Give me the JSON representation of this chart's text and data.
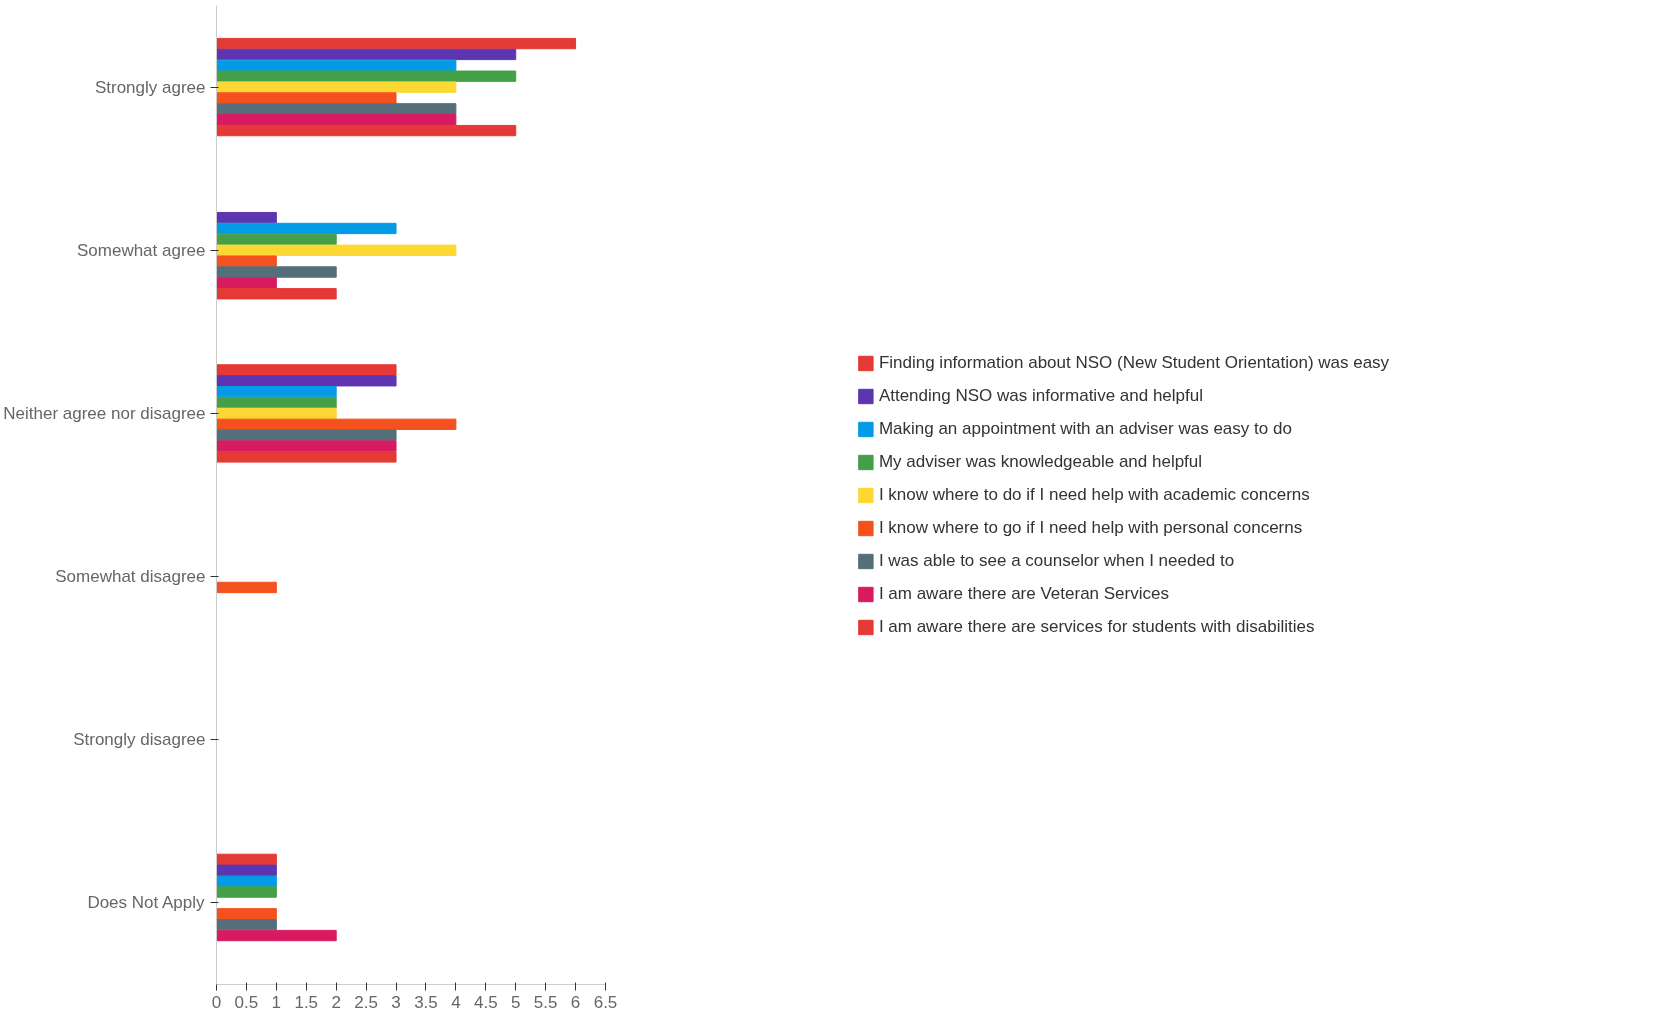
{
  "chart_data": {
    "type": "bar",
    "orientation": "horizontal",
    "categories": [
      "Strongly agree",
      "Somewhat agree",
      "Neither agree nor disagree",
      "Somewhat disagree",
      "Strongly disagree",
      "Does Not Apply"
    ],
    "series": [
      {
        "name": "Finding information about NSO (New Student Orientation) was easy",
        "color": "#e53935",
        "values": [
          6,
          0,
          3,
          0,
          0,
          1
        ]
      },
      {
        "name": "Attending NSO was informative and helpful",
        "color": "#5e35b1",
        "values": [
          5,
          1,
          3,
          0,
          0,
          1
        ]
      },
      {
        "name": "Making an appointment with an adviser was easy to do",
        "color": "#039be5",
        "values": [
          4,
          3,
          2,
          0,
          0,
          1
        ]
      },
      {
        "name": "My adviser was knowledgeable and helpful",
        "color": "#43a047",
        "values": [
          5,
          2,
          2,
          0,
          0,
          1
        ]
      },
      {
        "name": "I know where to do if I need help with academic concerns",
        "color": "#fdd835",
        "values": [
          4,
          4,
          2,
          0,
          0,
          0
        ]
      },
      {
        "name": "I know where to go if I need help with personal concerns",
        "color": "#f4511e",
        "values": [
          3,
          1,
          4,
          1,
          0,
          1
        ]
      },
      {
        "name": "I was able to see a counselor when I needed to",
        "color": "#546e7a",
        "values": [
          4,
          2,
          3,
          0,
          0,
          1
        ]
      },
      {
        "name": "I am aware there are Veteran Services",
        "color": "#d81b60",
        "values": [
          4,
          1,
          3,
          0,
          0,
          2
        ]
      },
      {
        "name": "I am aware there are services for students with disabilities",
        "color": "#e53935",
        "values": [
          5,
          2,
          3,
          0,
          0,
          0
        ]
      }
    ],
    "xlim": [
      0,
      6.5
    ],
    "xticks": [
      0,
      0.5,
      1,
      1.5,
      2,
      2.5,
      3,
      3.5,
      4,
      4.5,
      5,
      5.5,
      6,
      6.5
    ],
    "grid": false,
    "legend": "right"
  }
}
